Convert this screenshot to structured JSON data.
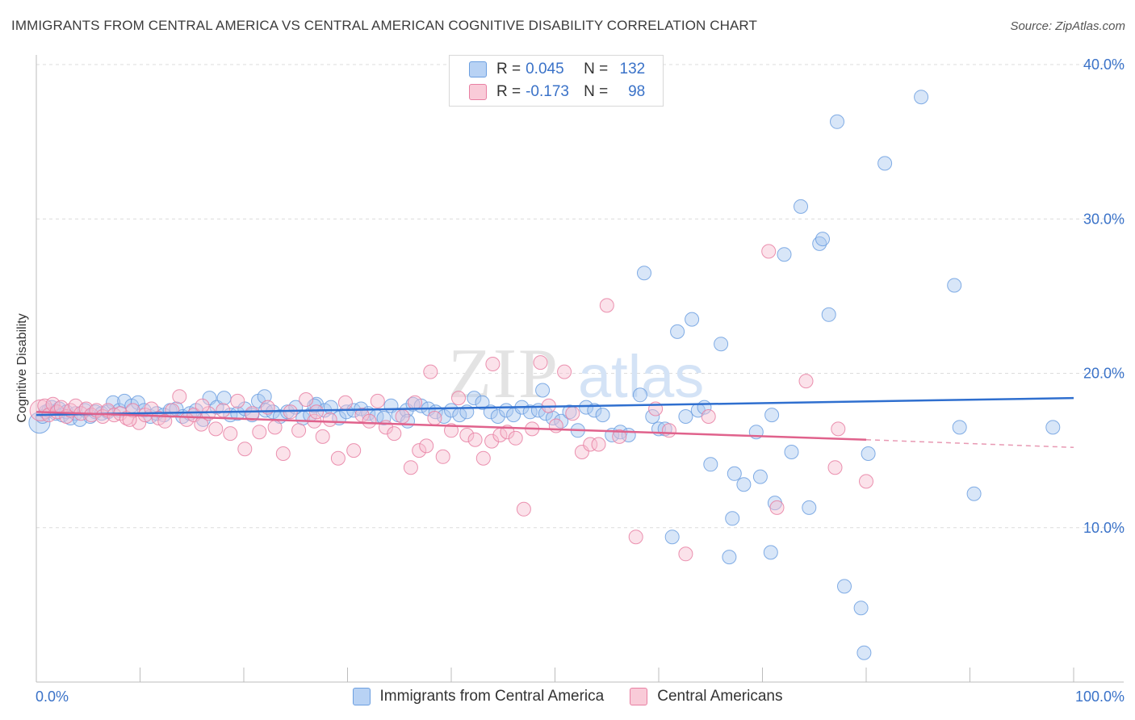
{
  "header": {
    "title": "IMMIGRANTS FROM CENTRAL AMERICA VS CENTRAL AMERICAN COGNITIVE DISABILITY CORRELATION CHART",
    "source": "Source: ZipAtlas.com"
  },
  "watermark": {
    "zip": "ZIP",
    "atlas": "atlas"
  },
  "legend": {
    "rows": [
      {
        "r_label": "R =",
        "r_value": "0.045",
        "n_label": "N =",
        "n_value": "132",
        "color": "#9fc3f2"
      },
      {
        "r_label": "R =",
        "r_value": "-0.173",
        "n_label": "N =",
        "n_value": "98",
        "color": "#f5b8c9"
      }
    ]
  },
  "chart_data": {
    "type": "scatter",
    "title": "IMMIGRANTS FROM CENTRAL AMERICA VS CENTRAL AMERICAN COGNITIVE DISABILITY CORRELATION CHART",
    "xlabel": "",
    "ylabel": "Cognitive Disability",
    "xlim": [
      0,
      100
    ],
    "ylim": [
      0,
      40
    ],
    "x_tick_labels": [
      "0.0%",
      "100.0%"
    ],
    "y_ticks": [
      10,
      20,
      30,
      40
    ],
    "y_tick_labels": [
      "10.0%",
      "20.0%",
      "30.0%",
      "40.0%"
    ],
    "grid": true,
    "legend_position": "bottom",
    "series": [
      {
        "name": "Immigrants from Central America",
        "color": "#6c9fe0",
        "fill": "#a9c8f0",
        "trend": {
          "x": [
            0,
            100
          ],
          "y": [
            17.3,
            18.4
          ]
        },
        "points": [
          [
            0.3,
            16.8
          ],
          [
            0.6,
            17.2
          ],
          [
            0.9,
            17.5
          ],
          [
            1.2,
            17.6
          ],
          [
            1.5,
            17.8
          ],
          [
            1.9,
            17.4
          ],
          [
            2.2,
            17.7
          ],
          [
            2.5,
            17.3
          ],
          [
            2.9,
            17.5
          ],
          [
            3.3,
            17.1
          ],
          [
            3.8,
            17.4
          ],
          [
            4.2,
            17.0
          ],
          [
            4.7,
            17.6
          ],
          [
            5.2,
            17.2
          ],
          [
            5.7,
            17.5
          ],
          [
            6.3,
            17.4
          ],
          [
            6.9,
            17.5
          ],
          [
            7.4,
            18.1
          ],
          [
            8.0,
            17.6
          ],
          [
            8.5,
            18.2
          ],
          [
            9.2,
            17.9
          ],
          [
            9.8,
            18.1
          ],
          [
            10.4,
            17.6
          ],
          [
            11.0,
            17.2
          ],
          [
            11.6,
            17.4
          ],
          [
            12.3,
            17.3
          ],
          [
            12.9,
            17.6
          ],
          [
            13.5,
            17.7
          ],
          [
            14.1,
            17.2
          ],
          [
            14.8,
            17.4
          ],
          [
            15.4,
            17.6
          ],
          [
            16.1,
            17.0
          ],
          [
            16.7,
            18.4
          ],
          [
            17.4,
            17.8
          ],
          [
            18.1,
            18.4
          ],
          [
            18.7,
            17.3
          ],
          [
            19.4,
            17.4
          ],
          [
            20.1,
            17.7
          ],
          [
            20.8,
            17.3
          ],
          [
            21.4,
            18.2
          ],
          [
            22.1,
            17.6
          ],
          [
            22.8,
            17.5
          ],
          [
            23.5,
            17.2
          ],
          [
            24.2,
            17.5
          ],
          [
            25.0,
            17.8
          ],
          [
            25.7,
            17.1
          ],
          [
            26.4,
            17.3
          ],
          [
            27.0,
            18.0
          ],
          [
            27.8,
            17.6
          ],
          [
            28.4,
            17.8
          ],
          [
            29.2,
            17.1
          ],
          [
            29.9,
            17.5
          ],
          [
            30.6,
            17.6
          ],
          [
            31.3,
            17.7
          ],
          [
            32.0,
            17.4
          ],
          [
            32.8,
            17.2
          ],
          [
            33.5,
            17.1
          ],
          [
            34.2,
            17.9
          ],
          [
            34.9,
            17.3
          ],
          [
            35.7,
            17.6
          ],
          [
            36.3,
            18.0
          ],
          [
            37.1,
            17.9
          ],
          [
            37.8,
            17.7
          ],
          [
            38.5,
            17.5
          ],
          [
            39.3,
            17.2
          ],
          [
            40.0,
            17.6
          ],
          [
            40.8,
            17.3
          ],
          [
            41.5,
            17.5
          ],
          [
            42.2,
            18.4
          ],
          [
            43.0,
            18.1
          ],
          [
            43.8,
            17.5
          ],
          [
            44.5,
            17.2
          ],
          [
            45.3,
            17.6
          ],
          [
            46.0,
            17.3
          ],
          [
            46.8,
            17.8
          ],
          [
            47.6,
            17.5
          ],
          [
            48.4,
            17.6
          ],
          [
            49.1,
            17.4
          ],
          [
            49.8,
            17.1
          ],
          [
            50.6,
            16.9
          ],
          [
            51.4,
            17.5
          ],
          [
            52.2,
            16.3
          ],
          [
            53.0,
            17.8
          ],
          [
            53.8,
            17.6
          ],
          [
            54.6,
            17.3
          ],
          [
            55.5,
            16.0
          ],
          [
            56.3,
            16.2
          ],
          [
            57.1,
            16.0
          ],
          [
            58.2,
            18.6
          ],
          [
            58.6,
            26.5
          ],
          [
            59.4,
            17.2
          ],
          [
            60.0,
            16.4
          ],
          [
            60.6,
            16.4
          ],
          [
            61.3,
            9.4
          ],
          [
            61.8,
            22.7
          ],
          [
            62.6,
            17.2
          ],
          [
            63.2,
            23.5
          ],
          [
            63.8,
            17.6
          ],
          [
            64.4,
            17.8
          ],
          [
            65.0,
            14.1
          ],
          [
            66.0,
            21.9
          ],
          [
            66.8,
            8.1
          ],
          [
            67.1,
            10.6
          ],
          [
            67.3,
            13.5
          ],
          [
            68.2,
            12.8
          ],
          [
            69.4,
            16.2
          ],
          [
            69.8,
            13.3
          ],
          [
            70.8,
            8.4
          ],
          [
            70.9,
            17.3
          ],
          [
            71.2,
            11.6
          ],
          [
            72.1,
            27.7
          ],
          [
            72.8,
            14.9
          ],
          [
            73.7,
            30.8
          ],
          [
            74.5,
            11.3
          ],
          [
            75.5,
            28.4
          ],
          [
            75.8,
            28.7
          ],
          [
            76.4,
            23.8
          ],
          [
            77.2,
            36.3
          ],
          [
            77.9,
            6.2
          ],
          [
            79.5,
            4.8
          ],
          [
            79.8,
            1.9
          ],
          [
            80.2,
            14.8
          ],
          [
            81.8,
            33.6
          ],
          [
            85.3,
            37.9
          ],
          [
            88.5,
            25.7
          ],
          [
            89.0,
            16.5
          ],
          [
            90.4,
            12.2
          ],
          [
            98.0,
            16.5
          ],
          [
            22.0,
            18.5
          ],
          [
            35.8,
            16.9
          ],
          [
            48.8,
            18.9
          ],
          [
            26.8,
            17.9
          ]
        ]
      },
      {
        "name": "Central Americans",
        "color": "#e87fa2",
        "fill": "#f6bfd0",
        "trend": {
          "x": [
            0,
            80
          ],
          "y": [
            17.5,
            15.7
          ]
        },
        "trend_dashed": {
          "x": [
            80,
            100
          ],
          "y": [
            15.7,
            15.2
          ]
        },
        "points": [
          [
            0.4,
            17.6
          ],
          [
            0.8,
            17.9
          ],
          [
            1.2,
            17.3
          ],
          [
            1.6,
            18.0
          ],
          [
            2.0,
            17.5
          ],
          [
            2.4,
            17.8
          ],
          [
            2.9,
            17.2
          ],
          [
            3.3,
            17.6
          ],
          [
            3.8,
            17.9
          ],
          [
            4.3,
            17.4
          ],
          [
            4.8,
            17.7
          ],
          [
            5.3,
            17.3
          ],
          [
            5.8,
            17.6
          ],
          [
            6.4,
            17.2
          ],
          [
            6.9,
            17.6
          ],
          [
            7.5,
            17.3
          ],
          [
            8.1,
            17.4
          ],
          [
            8.7,
            17.1
          ],
          [
            9.3,
            17.6
          ],
          [
            9.9,
            16.8
          ],
          [
            10.5,
            17.3
          ],
          [
            11.1,
            17.7
          ],
          [
            11.8,
            17.1
          ],
          [
            12.4,
            16.9
          ],
          [
            13.1,
            17.6
          ],
          [
            13.8,
            18.5
          ],
          [
            14.5,
            17.0
          ],
          [
            15.2,
            17.3
          ],
          [
            15.9,
            16.7
          ],
          [
            16.6,
            17.4
          ],
          [
            17.3,
            16.4
          ],
          [
            18.0,
            17.6
          ],
          [
            18.7,
            16.1
          ],
          [
            19.4,
            18.2
          ],
          [
            20.1,
            15.1
          ],
          [
            20.8,
            17.4
          ],
          [
            21.5,
            16.2
          ],
          [
            22.3,
            17.8
          ],
          [
            23.0,
            16.5
          ],
          [
            23.8,
            14.8
          ],
          [
            24.5,
            17.5
          ],
          [
            25.3,
            16.3
          ],
          [
            26.0,
            18.3
          ],
          [
            26.8,
            16.9
          ],
          [
            27.6,
            15.9
          ],
          [
            28.3,
            17.0
          ],
          [
            29.1,
            14.5
          ],
          [
            29.8,
            18.1
          ],
          [
            30.6,
            15.0
          ],
          [
            31.4,
            17.3
          ],
          [
            32.1,
            16.9
          ],
          [
            32.9,
            18.2
          ],
          [
            33.7,
            16.5
          ],
          [
            34.5,
            16.1
          ],
          [
            35.3,
            17.2
          ],
          [
            36.1,
            13.9
          ],
          [
            36.9,
            15.0
          ],
          [
            37.6,
            15.3
          ],
          [
            38.4,
            17.1
          ],
          [
            39.2,
            14.6
          ],
          [
            40.0,
            16.3
          ],
          [
            40.7,
            18.4
          ],
          [
            41.5,
            16.0
          ],
          [
            42.3,
            15.7
          ],
          [
            43.1,
            14.5
          ],
          [
            43.9,
            15.6
          ],
          [
            44.7,
            16.0
          ],
          [
            45.4,
            16.2
          ],
          [
            46.2,
            15.8
          ],
          [
            47.0,
            11.2
          ],
          [
            47.8,
            16.4
          ],
          [
            48.6,
            20.7
          ],
          [
            49.4,
            17.9
          ],
          [
            50.1,
            16.6
          ],
          [
            50.9,
            20.1
          ],
          [
            51.7,
            17.4
          ],
          [
            52.6,
            14.9
          ],
          [
            53.4,
            15.4
          ],
          [
            54.2,
            15.4
          ],
          [
            55.0,
            24.4
          ],
          [
            56.2,
            15.9
          ],
          [
            57.8,
            9.4
          ],
          [
            59.7,
            17.7
          ],
          [
            61.0,
            16.3
          ],
          [
            62.6,
            8.3
          ],
          [
            64.8,
            17.2
          ],
          [
            70.6,
            27.9
          ],
          [
            71.4,
            11.3
          ],
          [
            74.2,
            19.5
          ],
          [
            77.0,
            13.9
          ],
          [
            77.3,
            16.4
          ],
          [
            80.0,
            13.0
          ],
          [
            9.0,
            17.0
          ],
          [
            16.0,
            17.9
          ],
          [
            27.0,
            17.5
          ],
          [
            38.0,
            20.1
          ],
          [
            44.0,
            20.6
          ],
          [
            36.5,
            18.1
          ]
        ]
      }
    ]
  }
}
